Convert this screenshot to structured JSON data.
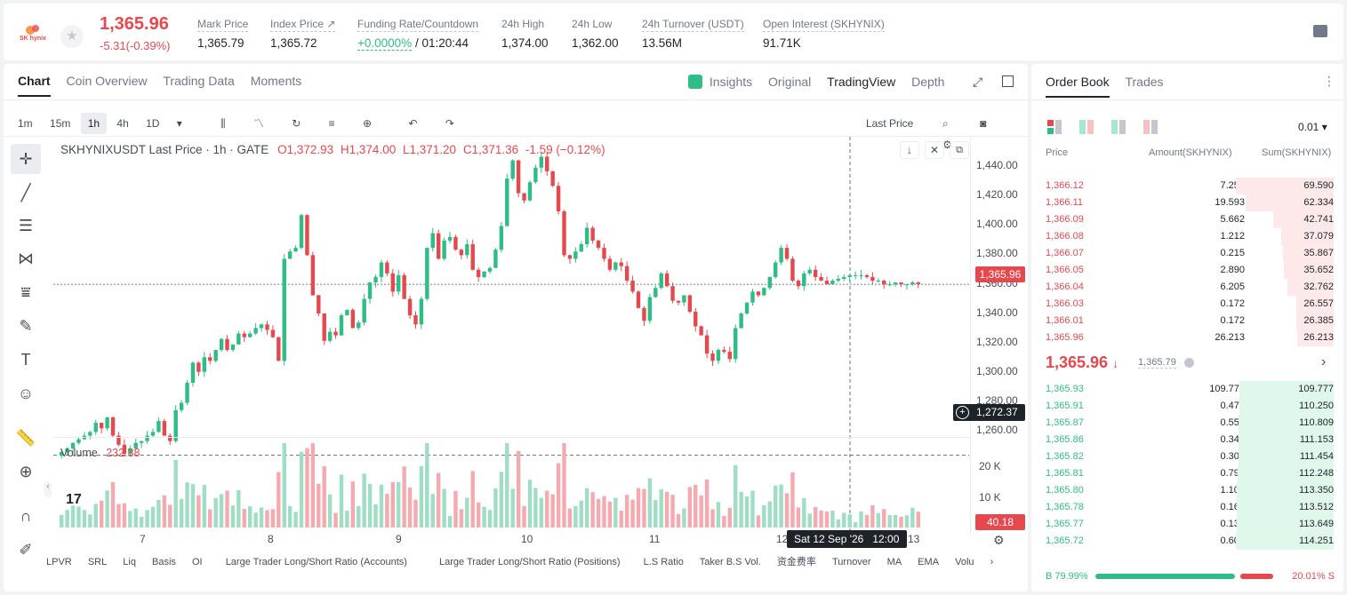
{
  "header": {
    "logo_text": "SK hynix",
    "price": "1,365.96",
    "change": "-5.31(-0.39%)",
    "stats": [
      {
        "label": "Mark Price",
        "value": "1,365.79"
      },
      {
        "label": "Index Price ↗",
        "value": "1,365.72"
      },
      {
        "label": "Funding Rate/Countdown",
        "value_a": "+0.0000%",
        "value_b": "/ 01:20:44"
      },
      {
        "label": "24h High",
        "value": "1,374.00"
      },
      {
        "label": "24h Low",
        "value": "1,362.00"
      },
      {
        "label": "24h Turnover (USDT)",
        "value": "13.56M"
      },
      {
        "label": "Open Interest (SKHYNIX)",
        "value": "91.71K"
      }
    ]
  },
  "chart_panel": {
    "tabs": [
      "Chart",
      "Coin Overview",
      "Trading Data",
      "Moments"
    ],
    "right_tabs": [
      "Insights",
      "Original",
      "TradingView",
      "Depth"
    ],
    "intervals": [
      "1m",
      "15m",
      "1h",
      "4h",
      "1D"
    ],
    "price_type": "Last Price",
    "ohlc": {
      "symbol": "SKHYNIXUSDT Last Price · 1h · GATE",
      "o": "O1,372.93",
      "h": "H1,374.00",
      "l": "L1,371.20",
      "c": "C1,371.36",
      "chg": "-1.59 (−0.12%)"
    },
    "y_ticks": [
      "1,440.00",
      "1,420.00",
      "1,400.00",
      "1,380.00",
      "1,360.00",
      "1,340.00",
      "1,320.00",
      "1,300.00",
      "1,280.00",
      "1,260.00"
    ],
    "last_price_tag": "1,365.96",
    "crosshair_tag": "1,272.37",
    "volume_label": "Volume",
    "volume_value": "232.38",
    "volume_ticks": [
      "20 K",
      "10 K"
    ],
    "volume_tag": "40.18",
    "x_ticks": [
      "7",
      "8",
      "9",
      "10",
      "11",
      "12",
      "13"
    ],
    "crosshair_date": "Sat 12 Sep '26",
    "crosshair_time": "12:00",
    "indicators": [
      "LPVR",
      "SRL",
      "Liq",
      "Basis",
      "OI",
      "Large Trader Long/Short Ratio (Accounts)",
      "Large Trader Long/Short Ratio (Positions)",
      "L.S Ratio",
      "Taker B.S Vol.",
      "资金费率",
      "Turnover",
      "MA",
      "EMA",
      "Volu"
    ]
  },
  "chart_data": {
    "type": "candlestick",
    "symbol": "SKHYNIXUSDT",
    "interval": "1h",
    "ylim": [
      1255,
      1445
    ],
    "closes": [
      1274,
      1276,
      1279,
      1281,
      1283,
      1285,
      1290,
      1287,
      1293,
      1283,
      1278,
      1273,
      1276,
      1279,
      1280,
      1283,
      1285,
      1291,
      1283,
      1280,
      1297,
      1301,
      1312,
      1323,
      1318,
      1326,
      1324,
      1330,
      1336,
      1330,
      1333,
      1339,
      1337,
      1339,
      1342,
      1344,
      1341,
      1337,
      1324,
      1380,
      1384,
      1386,
      1404,
      1382,
      1360,
      1350,
      1335,
      1340,
      1338,
      1349,
      1352,
      1342,
      1345,
      1358,
      1367,
      1370,
      1378,
      1372,
      1362,
      1371,
      1358,
      1349,
      1344,
      1358,
      1386,
      1394,
      1380,
      1390,
      1392,
      1385,
      1382,
      1388,
      1374,
      1370,
      1373,
      1375,
      1385,
      1398,
      1424,
      1434,
      1416,
      1412,
      1422,
      1430,
      1436,
      1428,
      1420,
      1406,
      1382,
      1380,
      1384,
      1388,
      1397,
      1390,
      1386,
      1380,
      1374,
      1378,
      1376,
      1368,
      1362,
      1353,
      1346,
      1359,
      1364,
      1372,
      1365,
      1357,
      1356,
      1360,
      1351,
      1343,
      1338,
      1328,
      1324,
      1330,
      1329,
      1325,
      1342,
      1350,
      1356,
      1362,
      1360,
      1364,
      1370,
      1378,
      1386,
      1380,
      1368,
      1365,
      1372,
      1374,
      1370,
      1368,
      1366,
      1368,
      1369,
      1370,
      1371,
      1371,
      1371,
      1370,
      1368,
      1368,
      1366,
      1366,
      1367,
      1366,
      1366,
      1367,
      1366
    ]
  },
  "order_book": {
    "tabs": [
      "Order Book",
      "Trades"
    ],
    "precision": "0.01",
    "headers": [
      "Price",
      "Amount(SKHYNIX)",
      "Sum(SKHYNIX)"
    ],
    "asks": [
      [
        "1,366.12",
        "7.256",
        "69.590"
      ],
      [
        "1,366.11",
        "19.593",
        "62.334"
      ],
      [
        "1,366.09",
        "5.662",
        "42.741"
      ],
      [
        "1,366.08",
        "1.212",
        "37.079"
      ],
      [
        "1,366.07",
        "0.215",
        "35.867"
      ],
      [
        "1,366.05",
        "2.890",
        "35.652"
      ],
      [
        "1,366.04",
        "6.205",
        "32.762"
      ],
      [
        "1,366.03",
        "0.172",
        "26.557"
      ],
      [
        "1,366.01",
        "0.172",
        "26.385"
      ],
      [
        "1,365.96",
        "26.213",
        "26.213"
      ]
    ],
    "last_price": "1,365.96",
    "mark_price": "1,365.79",
    "bids": [
      [
        "1,365.93",
        "109.777",
        "109.777"
      ],
      [
        "1,365.91",
        "0.473",
        "110.250"
      ],
      [
        "1,365.87",
        "0.559",
        "110.809"
      ],
      [
        "1,365.86",
        "0.344",
        "111.153"
      ],
      [
        "1,365.82",
        "0.301",
        "111.454"
      ],
      [
        "1,365.81",
        "0.794",
        "112.248"
      ],
      [
        "1,365.80",
        "1.102",
        "113.350"
      ],
      [
        "1,365.78",
        "0.162",
        "113.512"
      ],
      [
        "1,365.77",
        "0.137",
        "113.649"
      ],
      [
        "1,365.72",
        "0.602",
        "114.251"
      ]
    ],
    "buy_ratio": "B 79.99%",
    "sell_ratio": "20.01% S",
    "buy_fraction": 0.7999
  },
  "colors": {
    "up": "#2ebd85",
    "down": "#e5484d"
  }
}
